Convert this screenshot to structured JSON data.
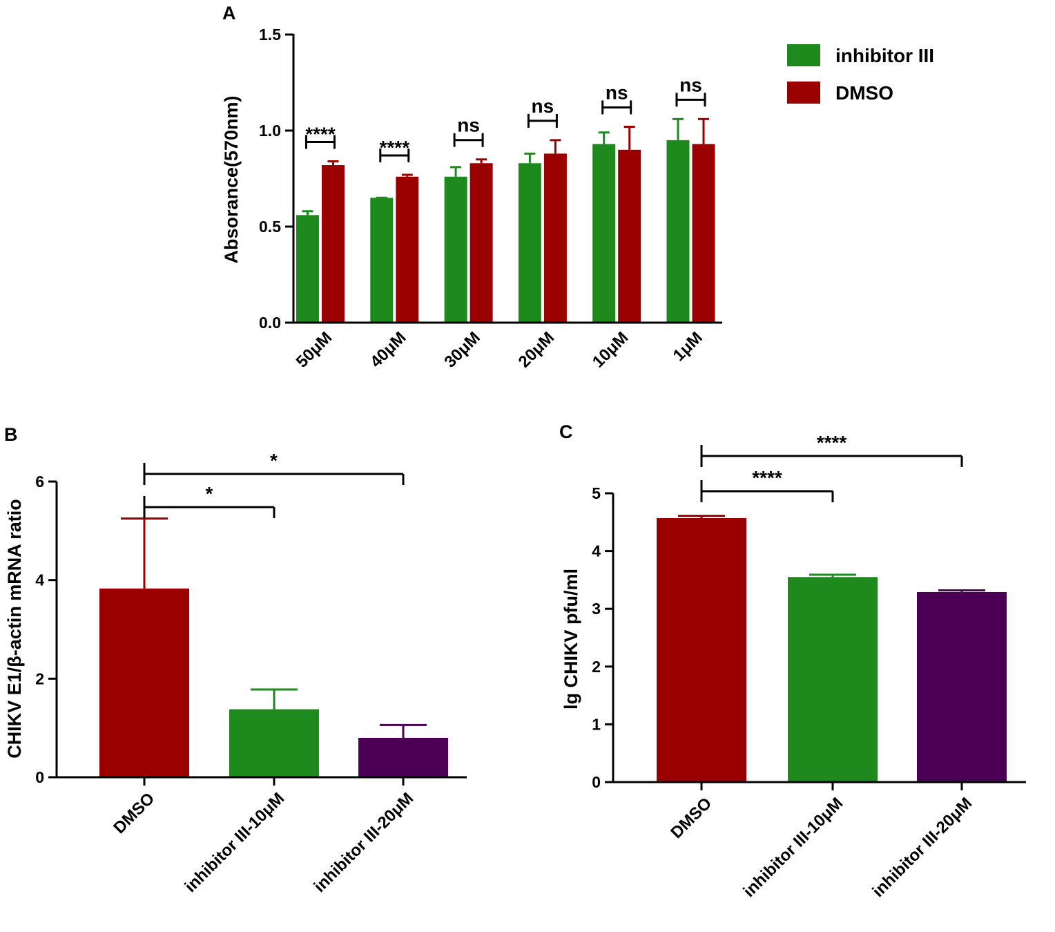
{
  "colors": {
    "green": "#1e8a1e",
    "red": "#9b0000",
    "purple": "#4b0055"
  },
  "chart_data": [
    {
      "panel": "A",
      "type": "bar",
      "title": "",
      "ylabel": "Absorance(570nm)",
      "xlabel": "",
      "ylim": [
        0,
        1.5
      ],
      "yticks": [
        "0.0",
        "0.5",
        "1.0",
        "1.5"
      ],
      "categories": [
        "50μM",
        "40μM",
        "30μM",
        "20μM",
        "10μM",
        "1μM"
      ],
      "series": [
        {
          "name": "inhibitor III",
          "color": "green",
          "values": [
            0.56,
            0.65,
            0.76,
            0.83,
            0.93,
            0.95
          ],
          "errors": [
            0.02,
            0.0,
            0.05,
            0.05,
            0.06,
            0.11
          ]
        },
        {
          "name": "DMSO",
          "color": "red",
          "values": [
            0.82,
            0.76,
            0.83,
            0.88,
            0.9,
            0.93
          ],
          "errors": [
            0.02,
            0.01,
            0.02,
            0.07,
            0.12,
            0.13
          ]
        }
      ],
      "significance": [
        "****",
        "****",
        "ns",
        "ns",
        "ns",
        "ns"
      ],
      "legend": {
        "position": "top-right",
        "entries": [
          "inhibitor III",
          "DMSO"
        ]
      }
    },
    {
      "panel": "B",
      "type": "bar",
      "title": "",
      "ylabel": "CHIKV E1/β-actin mRNA ratio",
      "xlabel": "",
      "ylim": [
        0,
        6
      ],
      "yticks": [
        "0",
        "2",
        "4",
        "6"
      ],
      "categories": [
        "DMSO",
        "inhibitor III-10μM",
        "inhibitor III-20μM"
      ],
      "values": [
        3.83,
        1.38,
        0.8
      ],
      "errors": [
        1.42,
        0.4,
        0.26
      ],
      "bar_colors": [
        "red",
        "green",
        "purple"
      ],
      "comparisons": [
        {
          "from": 0,
          "to": 1,
          "label": "*"
        },
        {
          "from": 0,
          "to": 2,
          "label": "*"
        }
      ]
    },
    {
      "panel": "C",
      "type": "bar",
      "title": "",
      "ylabel": "lg CHIKV pfu/ml",
      "xlabel": "",
      "ylim": [
        0,
        5
      ],
      "yticks": [
        "0",
        "1",
        "2",
        "3",
        "4",
        "5"
      ],
      "categories": [
        "DMSO",
        "inhibitor III-10μM",
        "inhibitor III-20μM"
      ],
      "values": [
        4.57,
        3.55,
        3.29
      ],
      "errors": [
        0.04,
        0.04,
        0.03
      ],
      "bar_colors": [
        "red",
        "green",
        "purple"
      ],
      "comparisons": [
        {
          "from": 0,
          "to": 1,
          "label": "****"
        },
        {
          "from": 0,
          "to": 2,
          "label": "****"
        }
      ]
    }
  ]
}
